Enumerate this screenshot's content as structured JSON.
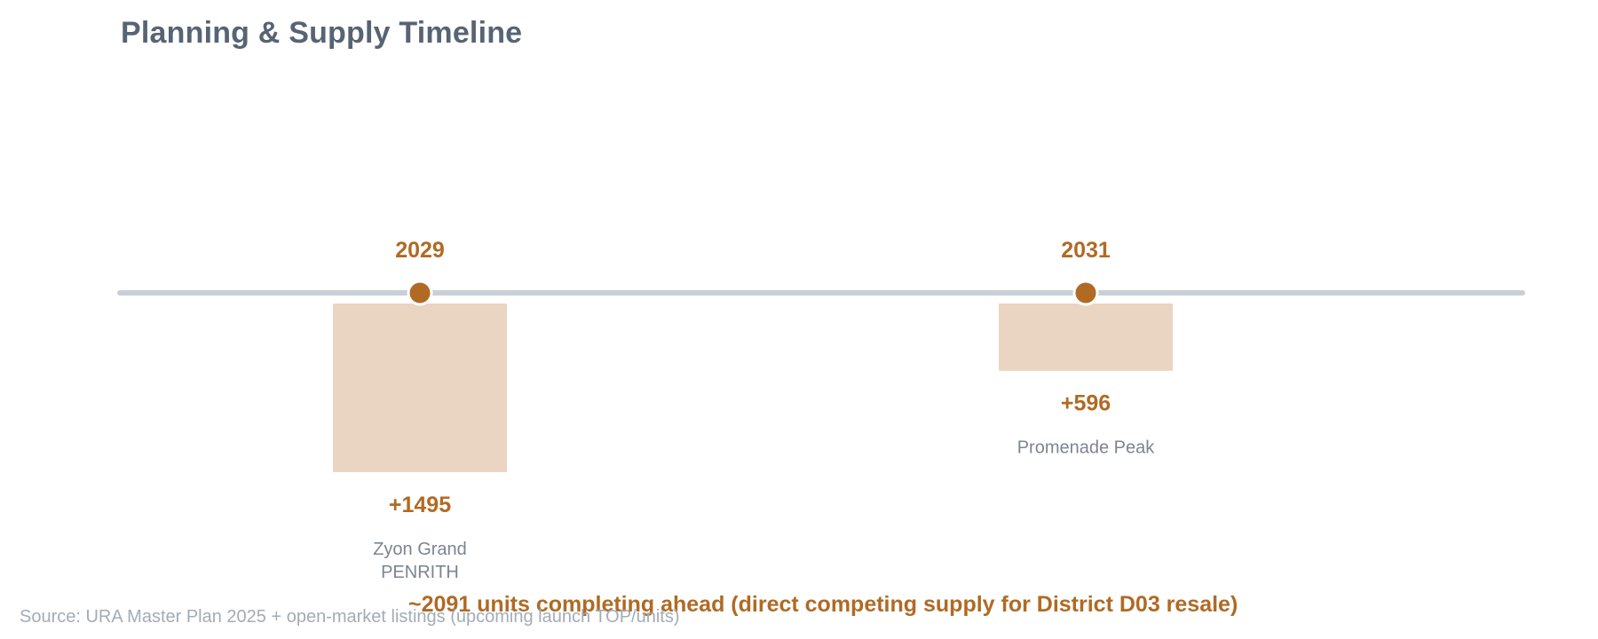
{
  "title": "Planning & Supply Timeline",
  "chart_data": {
    "type": "timeline",
    "events": [
      {
        "year": "2029",
        "units": 1495,
        "units_label": "+1495",
        "names": [
          "Zyon Grand",
          "PENRITH"
        ]
      },
      {
        "year": "2031",
        "units": 596,
        "units_label": "+596",
        "names": [
          "Promenade Peak"
        ]
      }
    ],
    "summary": "~2091 units completing ahead (direct competing supply for District D03 resale)",
    "source": "Source: URA Master Plan 2025 + open-market listings (upcoming launch TOP/units)"
  },
  "colors": {
    "accent": "#b06a24",
    "bar": "#e9d5c1",
    "axis": "#c9cfd6",
    "title": "#566473",
    "label": "#7b8591",
    "source": "#a3acb6"
  }
}
